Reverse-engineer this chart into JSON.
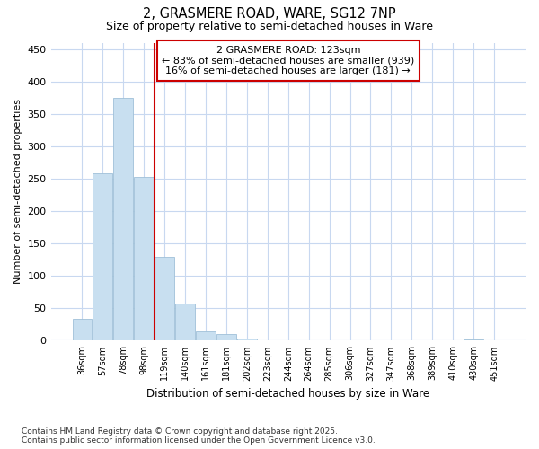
{
  "title": "2, GRASMERE ROAD, WARE, SG12 7NP",
  "subtitle": "Size of property relative to semi-detached houses in Ware",
  "xlabel": "Distribution of semi-detached houses by size in Ware",
  "ylabel": "Number of semi-detached properties",
  "categories": [
    "36sqm",
    "57sqm",
    "78sqm",
    "98sqm",
    "119sqm",
    "140sqm",
    "161sqm",
    "181sqm",
    "202sqm",
    "223sqm",
    "244sqm",
    "264sqm",
    "285sqm",
    "306sqm",
    "327sqm",
    "347sqm",
    "368sqm",
    "389sqm",
    "410sqm",
    "430sqm",
    "451sqm"
  ],
  "values": [
    34,
    258,
    375,
    253,
    130,
    57,
    15,
    10,
    4,
    0,
    0,
    0,
    0,
    0,
    0,
    0,
    0,
    0,
    0,
    2,
    0
  ],
  "bar_color": "#c8dff0",
  "bar_edge_color": "#a0c0d8",
  "vline_color": "#cc0000",
  "vline_pos": 3.5,
  "annotation_title": "2 GRASMERE ROAD: 123sqm",
  "annotation_line1": "← 83% of semi-detached houses are smaller (939)",
  "annotation_line2": "16% of semi-detached houses are larger (181) →",
  "annotation_box_color": "#cc0000",
  "ylim": [
    0,
    460
  ],
  "yticks": [
    0,
    50,
    100,
    150,
    200,
    250,
    300,
    350,
    400,
    450
  ],
  "footnote1": "Contains HM Land Registry data © Crown copyright and database right 2025.",
  "footnote2": "Contains public sector information licensed under the Open Government Licence v3.0.",
  "bg_color": "#ffffff",
  "grid_color": "#c8d8f0"
}
